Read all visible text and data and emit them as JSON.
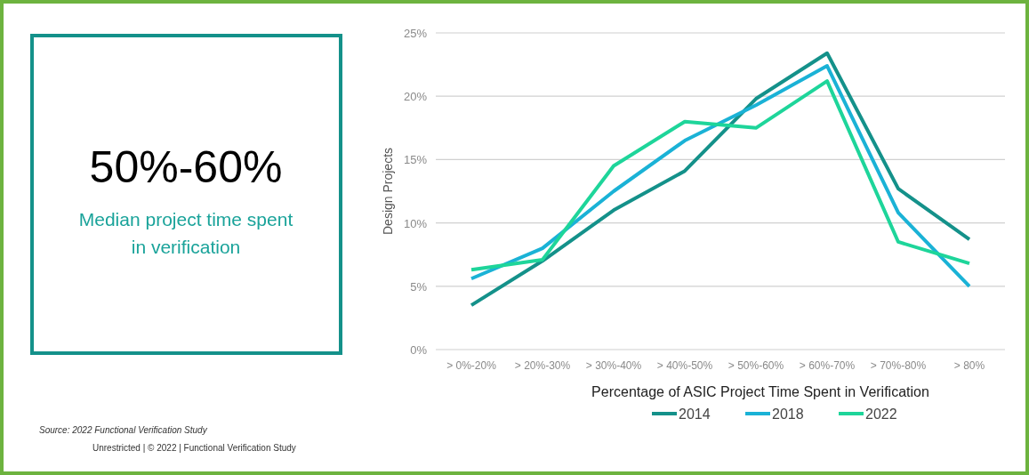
{
  "chart_data": [
    {
      "type": "other",
      "title": "50%-60%",
      "subtitle": "Median project time spent in verification"
    },
    {
      "type": "line",
      "xlabel": "Percentage of ASIC Project Time Spent in Verification",
      "ylabel": "Design Projects",
      "categories": [
        "> 0%-20%",
        "> 20%-30%",
        "> 30%-40%",
        "> 40%-50%",
        "> 50%-60%",
        "> 60%-70%",
        "> 70%-80%",
        "> 80%"
      ],
      "series": [
        {
          "name": "2014",
          "color": "#14918a",
          "values": [
            3.5,
            7.0,
            11.0,
            14.1,
            19.8,
            23.4,
            12.7,
            8.7
          ]
        },
        {
          "name": "2018",
          "color": "#1ab2d6",
          "values": [
            5.6,
            8.0,
            12.5,
            16.5,
            19.3,
            22.4,
            10.8,
            5.0
          ]
        },
        {
          "name": "2022",
          "color": "#1ed59a",
          "values": [
            6.3,
            7.1,
            14.5,
            18.0,
            17.5,
            21.2,
            8.5,
            6.8
          ]
        }
      ],
      "ylim": [
        0,
        25
      ],
      "yticks": [
        {
          "value": 0,
          "label": "0%"
        },
        {
          "value": 5,
          "label": "5%"
        },
        {
          "value": 10,
          "label": "10%"
        },
        {
          "value": 15,
          "label": "15%"
        },
        {
          "value": 20,
          "label": "20%"
        },
        {
          "value": 25,
          "label": "25%"
        }
      ],
      "grid": "y",
      "legend": "bottom",
      "marker": "none",
      "line_style": "solid",
      "annotations": [
        "Source:  2022 Functional Verification Study",
        "Unrestricted | © 2022 | Functional Verification Study"
      ]
    }
  ]
}
